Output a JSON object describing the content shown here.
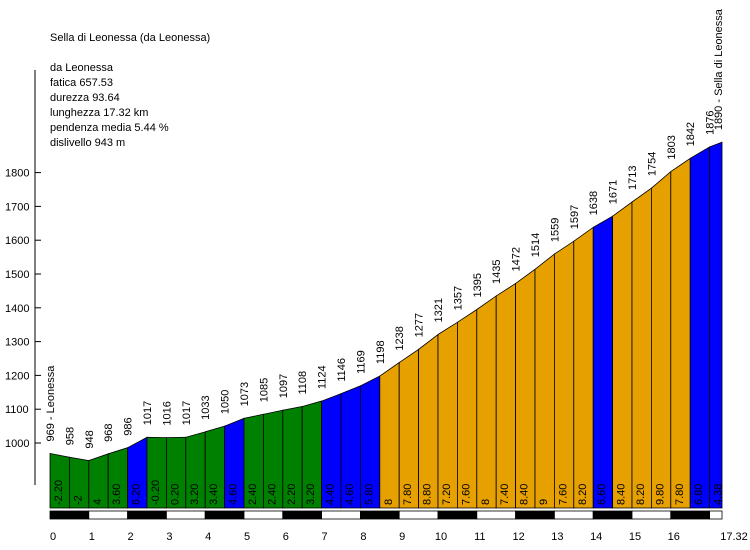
{
  "title": "Sella di Leonessa (da Leonessa)",
  "info": {
    "origin": "da Leonessa",
    "fatica": "fatica 657.53",
    "durezza": "durezza 93.64",
    "lunghezza": "lunghezza 17.32 km",
    "pendenza": "pendenza media 5.44 %",
    "dislivello": "dislivello 943 m"
  },
  "colors": {
    "green": "#008000",
    "blue": "#0000FF",
    "orange": "#E6A000",
    "black": "#000000",
    "white": "#FFFFFF"
  },
  "chart_data": {
    "type": "area",
    "xlim": [
      0,
      17.32
    ],
    "ylim": [
      900,
      1900
    ],
    "y_ticks": [
      1000,
      1100,
      1200,
      1300,
      1400,
      1500,
      1600,
      1700,
      1800
    ],
    "x_ticks": [
      0,
      1,
      2,
      3,
      4,
      5,
      6,
      7,
      8,
      9,
      10,
      11,
      12,
      13,
      14,
      15,
      16
    ],
    "x_end_label": "17.32",
    "start_label": "969 - Leonessa",
    "end_label": "1890 - Sella di Leonessa",
    "points": [
      {
        "x": 0,
        "y": 969
      },
      {
        "x": 0.5,
        "y": 958
      },
      {
        "x": 1,
        "y": 948
      },
      {
        "x": 1.5,
        "y": 968
      },
      {
        "x": 2,
        "y": 986
      },
      {
        "x": 2.5,
        "y": 1017
      },
      {
        "x": 3,
        "y": 1016
      },
      {
        "x": 3.5,
        "y": 1017
      },
      {
        "x": 4,
        "y": 1033
      },
      {
        "x": 4.5,
        "y": 1050
      },
      {
        "x": 5,
        "y": 1073
      },
      {
        "x": 5.5,
        "y": 1085
      },
      {
        "x": 6,
        "y": 1097
      },
      {
        "x": 6.5,
        "y": 1108
      },
      {
        "x": 7,
        "y": 1124
      },
      {
        "x": 7.5,
        "y": 1146
      },
      {
        "x": 8,
        "y": 1169
      },
      {
        "x": 8.5,
        "y": 1198
      },
      {
        "x": 9,
        "y": 1238
      },
      {
        "x": 9.5,
        "y": 1277
      },
      {
        "x": 10,
        "y": 1321
      },
      {
        "x": 10.5,
        "y": 1357
      },
      {
        "x": 11,
        "y": 1395
      },
      {
        "x": 11.5,
        "y": 1435
      },
      {
        "x": 12,
        "y": 1472
      },
      {
        "x": 12.5,
        "y": 1514
      },
      {
        "x": 13,
        "y": 1559
      },
      {
        "x": 13.5,
        "y": 1597
      },
      {
        "x": 14,
        "y": 1638
      },
      {
        "x": 14.5,
        "y": 1671
      },
      {
        "x": 15,
        "y": 1713
      },
      {
        "x": 15.5,
        "y": 1754
      },
      {
        "x": 16,
        "y": 1803
      },
      {
        "x": 16.5,
        "y": 1842
      },
      {
        "x": 17,
        "y": 1876
      },
      {
        "x": 17.32,
        "y": 1890
      }
    ],
    "segments": [
      {
        "grade": "-2.20",
        "color": "green"
      },
      {
        "grade": "-2",
        "color": "green"
      },
      {
        "grade": "4",
        "color": "green"
      },
      {
        "grade": "3.60",
        "color": "green"
      },
      {
        "grade": "6.20",
        "color": "blue"
      },
      {
        "grade": "-0.20",
        "color": "green"
      },
      {
        "grade": "0.20",
        "color": "green"
      },
      {
        "grade": "3.20",
        "color": "green"
      },
      {
        "grade": "3.40",
        "color": "green"
      },
      {
        "grade": "4.60",
        "color": "blue"
      },
      {
        "grade": "2.40",
        "color": "green"
      },
      {
        "grade": "2.40",
        "color": "green"
      },
      {
        "grade": "2.20",
        "color": "green"
      },
      {
        "grade": "3.20",
        "color": "green"
      },
      {
        "grade": "4.40",
        "color": "blue"
      },
      {
        "grade": "4.60",
        "color": "blue"
      },
      {
        "grade": "5.80",
        "color": "blue"
      },
      {
        "grade": "8",
        "color": "orange"
      },
      {
        "grade": "7.80",
        "color": "orange"
      },
      {
        "grade": "8.80",
        "color": "orange"
      },
      {
        "grade": "7.20",
        "color": "orange"
      },
      {
        "grade": "7.60",
        "color": "orange"
      },
      {
        "grade": "8",
        "color": "orange"
      },
      {
        "grade": "7.40",
        "color": "orange"
      },
      {
        "grade": "8.40",
        "color": "orange"
      },
      {
        "grade": "9",
        "color": "orange"
      },
      {
        "grade": "7.60",
        "color": "orange"
      },
      {
        "grade": "8.20",
        "color": "orange"
      },
      {
        "grade": "6.60",
        "color": "blue"
      },
      {
        "grade": "8.40",
        "color": "orange"
      },
      {
        "grade": "8.20",
        "color": "orange"
      },
      {
        "grade": "9.80",
        "color": "orange"
      },
      {
        "grade": "7.80",
        "color": "orange"
      },
      {
        "grade": "6.80",
        "color": "blue"
      },
      {
        "grade": "4.38",
        "color": "blue"
      }
    ]
  }
}
